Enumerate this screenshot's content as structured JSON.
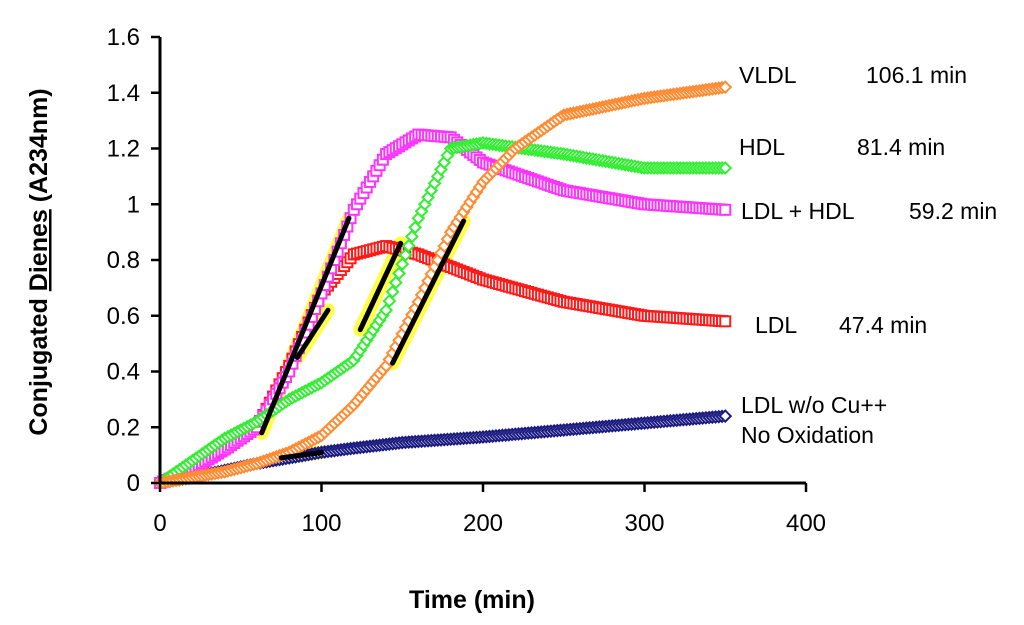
{
  "chart_data": {
    "type": "scatter",
    "xlabel": "Time (min)",
    "ylabel_plain": "Conjugated ",
    "ylabel_underlined": "Dienes",
    "ylabel_suffix": " (A234nm)",
    "xlim": [
      0,
      400
    ],
    "ylim": [
      0,
      1.6
    ],
    "xticks": [
      "0",
      "100",
      "200",
      "300",
      "400"
    ],
    "yticks": [
      "0",
      "0.2",
      "0.4",
      "0.6",
      "0.8",
      "1",
      "1.2",
      "1.4",
      "1.6"
    ],
    "grid": false,
    "series": [
      {
        "name": "LDL w/o Cu++",
        "label_line1": "LDL w/o Cu++",
        "label_line2": "No Oxidation",
        "lag_time": "",
        "color": "#1a1a80",
        "marker": "diamond",
        "x": [
          0,
          20,
          40,
          60,
          80,
          100,
          120,
          150,
          200,
          250,
          300,
          350
        ],
        "y": [
          0.0,
          0.02,
          0.045,
          0.07,
          0.09,
          0.11,
          0.125,
          0.145,
          0.165,
          0.19,
          0.215,
          0.24
        ]
      },
      {
        "name": "LDL",
        "label_line1": "LDL",
        "lag_time": "47.4 min",
        "color": "#ff1a1a",
        "marker": "square",
        "x": [
          0,
          20,
          40,
          60,
          80,
          100,
          120,
          140,
          160,
          200,
          250,
          300,
          350
        ],
        "y": [
          0.0,
          0.05,
          0.12,
          0.2,
          0.42,
          0.68,
          0.82,
          0.85,
          0.82,
          0.73,
          0.65,
          0.6,
          0.58
        ]
      },
      {
        "name": "LDL + HDL",
        "label_line1": "LDL + HDL",
        "lag_time": "59.2 min",
        "color": "#ff33ff",
        "marker": "square",
        "x": [
          0,
          20,
          40,
          60,
          80,
          100,
          120,
          140,
          160,
          180,
          200,
          250,
          300,
          350
        ],
        "y": [
          0.0,
          0.05,
          0.12,
          0.2,
          0.4,
          0.68,
          0.98,
          1.18,
          1.25,
          1.24,
          1.15,
          1.05,
          1.0,
          0.98
        ]
      },
      {
        "name": "HDL",
        "label_line1": "HDL",
        "lag_time": "81.4 min",
        "color": "#33ee33",
        "marker": "diamond",
        "x": [
          0,
          20,
          40,
          60,
          80,
          100,
          120,
          140,
          160,
          180,
          200,
          250,
          300,
          350
        ],
        "y": [
          0.0,
          0.08,
          0.16,
          0.22,
          0.3,
          0.36,
          0.44,
          0.62,
          0.95,
          1.2,
          1.22,
          1.18,
          1.13,
          1.13
        ]
      },
      {
        "name": "VLDL",
        "label_line1": "VLDL",
        "lag_time": "106.1 min",
        "color": "#ff8c33",
        "marker": "diamond",
        "x": [
          0,
          20,
          40,
          60,
          80,
          100,
          120,
          140,
          160,
          180,
          200,
          220,
          250,
          300,
          350
        ],
        "y": [
          0.0,
          0.02,
          0.04,
          0.07,
          0.11,
          0.17,
          0.28,
          0.42,
          0.65,
          0.9,
          1.08,
          1.2,
          1.32,
          1.38,
          1.42
        ]
      }
    ],
    "tangent_lines": [
      {
        "series": "LDL w/o Cu++",
        "x": [
          75,
          100
        ],
        "y": [
          0.09,
          0.11
        ]
      },
      {
        "series": "LDL + HDL",
        "x": [
          63,
          117
        ],
        "y": [
          0.18,
          0.95
        ]
      },
      {
        "series": "LDL",
        "x": [
          85,
          104
        ],
        "y": [
          0.45,
          0.62
        ]
      },
      {
        "series": "HDL",
        "x": [
          124,
          149
        ],
        "y": [
          0.55,
          0.86
        ]
      },
      {
        "series": "VLDL",
        "x": [
          144,
          188
        ],
        "y": [
          0.43,
          0.94
        ]
      }
    ]
  }
}
